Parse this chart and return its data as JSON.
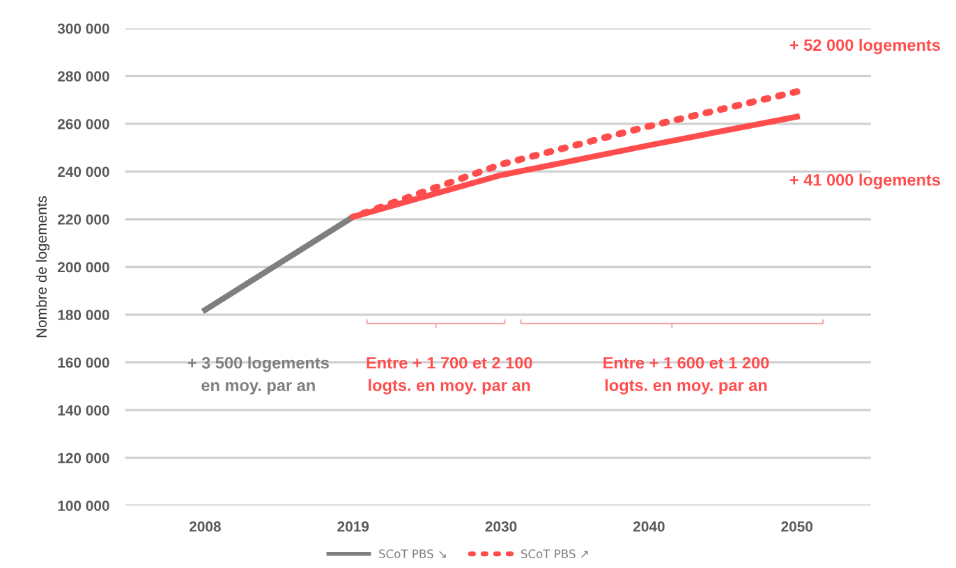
{
  "chart_data": {
    "type": "line",
    "ylabel": "Nombre de logements",
    "categories": [
      "2008",
      "2019",
      "2030",
      "2040",
      "2050"
    ],
    "series": [
      {
        "name": "SCoT PBS ↘",
        "color": "#7f7f7f",
        "values": [
          182000,
          221000,
          null,
          null,
          null
        ],
        "line_style": "solid"
      },
      {
        "color": "#ff4d4d",
        "values": [
          null,
          221000,
          238500,
          251000,
          263000
        ],
        "line_style": "solid"
      },
      {
        "name": "SCoT PBS ↗",
        "color": "#ff4d4d",
        "values": [
          null,
          221000,
          243000,
          259000,
          273500
        ],
        "line_style": "dotted"
      }
    ],
    "ylim": [
      100000,
      300000
    ],
    "yticks": [
      {
        "value": 100000,
        "label": "100 000"
      },
      {
        "value": 120000,
        "label": "120 000"
      },
      {
        "value": 140000,
        "label": "140 000"
      },
      {
        "value": 160000,
        "label": "160 000"
      },
      {
        "value": 180000,
        "label": "180 000"
      },
      {
        "value": 200000,
        "label": "200 000"
      },
      {
        "value": 220000,
        "label": "220 000"
      },
      {
        "value": 240000,
        "label": "240 000"
      },
      {
        "value": 260000,
        "label": "260 000"
      },
      {
        "value": 280000,
        "label": "280 000"
      },
      {
        "value": 300000,
        "label": "300 000"
      }
    ],
    "grid": "y",
    "legend": "bottom",
    "marker": "none",
    "annotations": [
      "+ 52 000 logements",
      "+ 41 000 logements",
      "+ 3 500 logements\nen moy. par an",
      "Entre + 1 700 et 2 100\nlogts. en moy. par an",
      "Entre + 1 600 et 1 200\nlogts. en moy. par an"
    ]
  }
}
